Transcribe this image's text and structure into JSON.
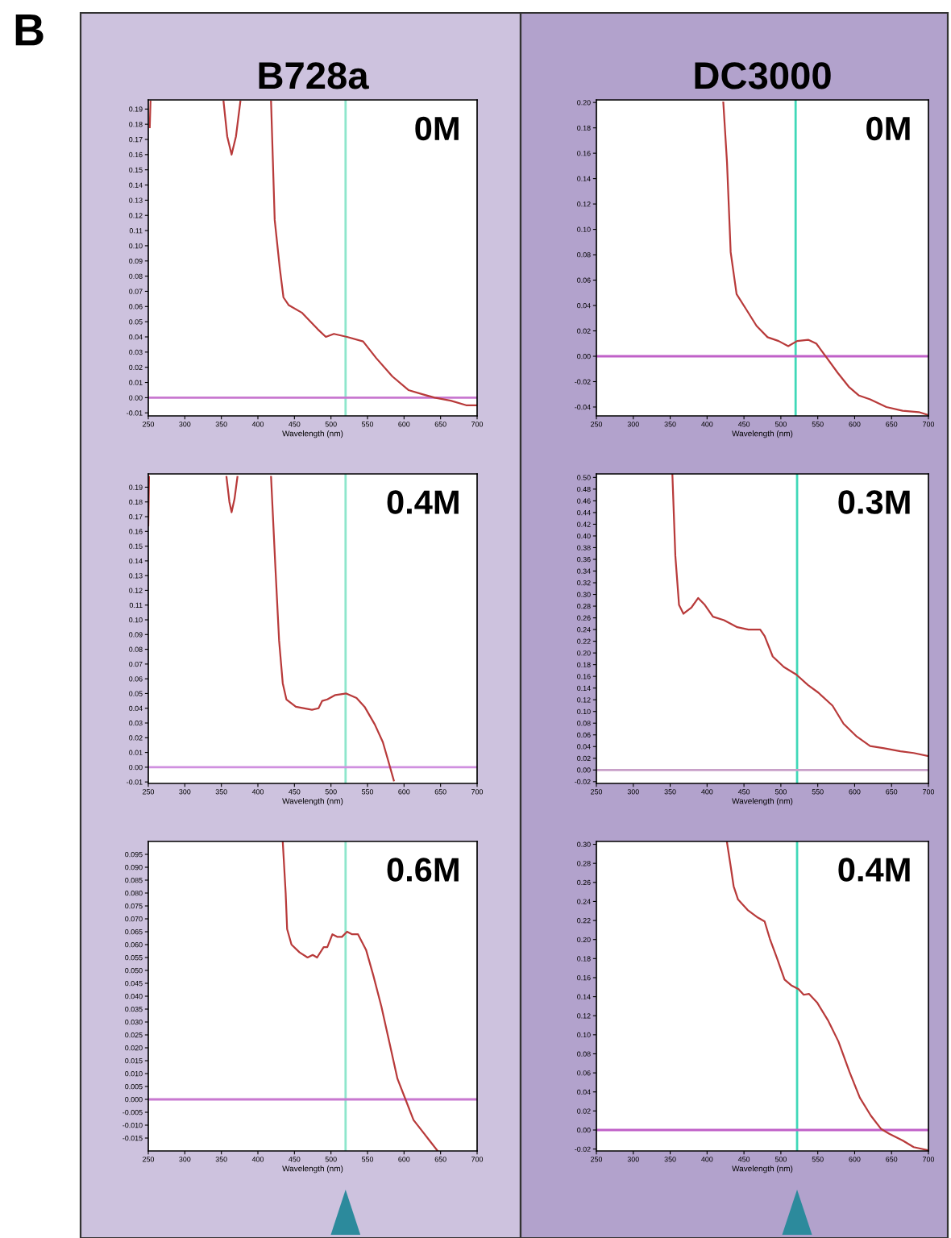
{
  "chart_data": [
    {
      "type": "line",
      "title": "B728a",
      "xlabel": "Wavelength (nm)",
      "annotations": [
        "0M",
        "B"
      ],
      "x": [
        252,
        253,
        null,
        353,
        358,
        364,
        370,
        376,
        null,
        418,
        423,
        430,
        435,
        442,
        460,
        482,
        493,
        504,
        522,
        544,
        562,
        584,
        606,
        627,
        642,
        664,
        685,
        700
      ],
      "series": [
        {
          "color": "#b83a3a",
          "values": [
            0.178,
            0.195,
            null,
            0.195,
            0.172,
            0.16,
            0.172,
            0.195,
            null,
            0.195,
            0.117,
            0.085,
            0.066,
            0.061,
            0.056,
            0.045,
            0.04,
            0.042,
            0.04,
            0.037,
            0.026,
            0.014,
            0.005,
            0.002,
            0.0,
            -0.002,
            -0.005,
            -0.005
          ]
        }
      ],
      "xlim": [
        250,
        700
      ],
      "xticks": [
        250,
        300,
        350,
        400,
        450,
        500,
        550,
        600,
        650,
        700
      ],
      "ylim": [
        -0.012,
        0.196
      ],
      "yticks": [
        {
          "value": -0.01,
          "label": "-0.01"
        },
        {
          "value": 0.0,
          "label": "0.00"
        },
        {
          "value": 0.01,
          "label": "0.01"
        },
        {
          "value": 0.02,
          "label": "0.02"
        },
        {
          "value": 0.03,
          "label": "0.03"
        },
        {
          "value": 0.04,
          "label": "0.04"
        },
        {
          "value": 0.05,
          "label": "0.05"
        },
        {
          "value": 0.06,
          "label": "0.06"
        },
        {
          "value": 0.07,
          "label": "0.07"
        },
        {
          "value": 0.08,
          "label": "0.08"
        },
        {
          "value": 0.09,
          "label": "0.09"
        },
        {
          "value": 0.1,
          "label": "0.10"
        },
        {
          "value": 0.11,
          "label": "0.11"
        },
        {
          "value": 0.12,
          "label": "0.12"
        },
        {
          "value": 0.13,
          "label": "0.13"
        },
        {
          "value": 0.14,
          "label": "0.14"
        },
        {
          "value": 0.15,
          "label": "0.15"
        },
        {
          "value": 0.16,
          "label": "0.16"
        },
        {
          "value": 0.17,
          "label": "0.17"
        },
        {
          "value": 0.18,
          "label": "0.18"
        },
        {
          "value": 0.19,
          "label": "0.19"
        }
      ],
      "ref_lines": [
        {
          "axis": "x",
          "value": 520,
          "color": "#8ee6cc"
        },
        {
          "axis": "y",
          "value": 0,
          "color": "#c878d0"
        }
      ],
      "grid": false,
      "legend": false,
      "marker": "none",
      "line_style": "solid"
    },
    {
      "type": "line",
      "title": "DC3000",
      "xlabel": "Wavelength (nm)",
      "annotations": [
        "0M"
      ],
      "x": [
        422,
        427,
        432,
        440,
        453,
        467,
        482,
        497,
        510,
        522,
        537,
        548,
        562,
        577,
        592,
        606,
        621,
        643,
        665,
        687,
        698
      ],
      "series": [
        {
          "color": "#b83a3a",
          "values": [
            0.2,
            0.153,
            0.082,
            0.049,
            0.037,
            0.024,
            0.015,
            0.012,
            0.008,
            0.012,
            0.013,
            0.01,
            -0.001,
            -0.013,
            -0.024,
            -0.031,
            -0.034,
            -0.04,
            -0.043,
            -0.044,
            -0.046
          ]
        }
      ],
      "xlim": [
        250,
        700
      ],
      "xticks": [
        250,
        300,
        350,
        400,
        450,
        500,
        550,
        600,
        650,
        700
      ],
      "ylim": [
        -0.047,
        0.202
      ],
      "yticks": [
        {
          "value": -0.04,
          "label": "-0.04"
        },
        {
          "value": -0.02,
          "label": "-0.02"
        },
        {
          "value": 0.0,
          "label": "0.00"
        },
        {
          "value": 0.02,
          "label": "0.02"
        },
        {
          "value": 0.04,
          "label": "0.04"
        },
        {
          "value": 0.06,
          "label": "0.06"
        },
        {
          "value": 0.08,
          "label": "0.08"
        },
        {
          "value": 0.1,
          "label": "0.10"
        },
        {
          "value": 0.12,
          "label": "0.12"
        },
        {
          "value": 0.14,
          "label": "0.14"
        },
        {
          "value": 0.16,
          "label": "0.16"
        },
        {
          "value": 0.18,
          "label": "0.18"
        },
        {
          "value": 0.2,
          "label": "0.20"
        }
      ],
      "ref_lines": [
        {
          "axis": "x",
          "value": 520,
          "color": "#40d8b8"
        },
        {
          "axis": "y",
          "value": 0,
          "color": "#c060c8"
        }
      ],
      "grid": false,
      "legend": false,
      "marker": "none",
      "line_style": "solid"
    },
    {
      "type": "line",
      "xlabel": "Wavelength (nm)",
      "annotations": [
        "0.4M"
      ],
      "x": [
        250,
        251,
        null,
        357,
        361,
        364,
        368,
        372,
        null,
        418,
        424,
        429,
        434,
        439,
        452,
        474,
        483,
        488,
        495,
        506,
        521,
        535,
        546,
        560,
        571,
        578,
        586
      ],
      "series": [
        {
          "color": "#b83a3a",
          "values": [
            0.164,
            0.197,
            null,
            0.197,
            0.18,
            0.173,
            0.182,
            0.197,
            null,
            0.197,
            0.135,
            0.086,
            0.057,
            0.046,
            0.041,
            0.039,
            0.04,
            0.045,
            0.046,
            0.049,
            0.05,
            0.047,
            0.041,
            0.029,
            0.017,
            0.005,
            -0.009
          ]
        }
      ],
      "xlim": [
        250,
        700
      ],
      "xticks": [
        250,
        300,
        350,
        400,
        450,
        500,
        550,
        600,
        650,
        700
      ],
      "ylim": [
        -0.011,
        0.199
      ],
      "yticks": [
        {
          "value": -0.01,
          "label": "-0.01"
        },
        {
          "value": 0.0,
          "label": "0.00"
        },
        {
          "value": 0.01,
          "label": "0.01"
        },
        {
          "value": 0.02,
          "label": "0.02"
        },
        {
          "value": 0.03,
          "label": "0.03"
        },
        {
          "value": 0.04,
          "label": "0.04"
        },
        {
          "value": 0.05,
          "label": "0.05"
        },
        {
          "value": 0.06,
          "label": "0.06"
        },
        {
          "value": 0.07,
          "label": "0.07"
        },
        {
          "value": 0.08,
          "label": "0.08"
        },
        {
          "value": 0.09,
          "label": "0.09"
        },
        {
          "value": 0.1,
          "label": "0.10"
        },
        {
          "value": 0.11,
          "label": "0.11"
        },
        {
          "value": 0.12,
          "label": "0.12"
        },
        {
          "value": 0.13,
          "label": "0.13"
        },
        {
          "value": 0.14,
          "label": "0.14"
        },
        {
          "value": 0.15,
          "label": "0.15"
        },
        {
          "value": 0.16,
          "label": "0.16"
        },
        {
          "value": 0.17,
          "label": "0.17"
        },
        {
          "value": 0.18,
          "label": "0.18"
        },
        {
          "value": 0.19,
          "label": "0.19"
        }
      ],
      "ref_lines": [
        {
          "axis": "x",
          "value": 520,
          "color": "#8ee6cc"
        },
        {
          "axis": "y",
          "value": 0,
          "color": "#d090e0"
        }
      ],
      "grid": false,
      "legend": false,
      "marker": "none",
      "line_style": "solid"
    },
    {
      "type": "line",
      "xlabel": "Wavelength (nm)",
      "annotations": [
        "0.3M"
      ],
      "x": [
        353,
        357,
        362,
        368,
        379,
        388,
        397,
        408,
        423,
        441,
        456,
        472,
        478,
        489,
        504,
        521,
        537,
        551,
        570,
        585,
        603,
        621,
        640,
        662,
        680,
        699
      ],
      "series": [
        {
          "color": "#b83a3a",
          "values": [
            0.505,
            0.366,
            0.282,
            0.267,
            0.278,
            0.294,
            0.282,
            0.262,
            0.256,
            0.244,
            0.24,
            0.24,
            0.229,
            0.194,
            0.176,
            0.163,
            0.145,
            0.132,
            0.11,
            0.079,
            0.057,
            0.041,
            0.037,
            0.032,
            0.029,
            0.024
          ]
        }
      ],
      "xlim": [
        250,
        700
      ],
      "xticks": [
        250,
        300,
        350,
        400,
        450,
        500,
        550,
        600,
        650,
        700
      ],
      "ylim": [
        -0.023,
        0.506
      ],
      "yticks": [
        {
          "value": -0.02,
          "label": "-0.02"
        },
        {
          "value": 0.0,
          "label": "0.00"
        },
        {
          "value": 0.02,
          "label": "0.02"
        },
        {
          "value": 0.04,
          "label": "0.04"
        },
        {
          "value": 0.06,
          "label": "0.06"
        },
        {
          "value": 0.08,
          "label": "0.08"
        },
        {
          "value": 0.1,
          "label": "0.10"
        },
        {
          "value": 0.12,
          "label": "0.12"
        },
        {
          "value": 0.14,
          "label": "0.14"
        },
        {
          "value": 0.16,
          "label": "0.16"
        },
        {
          "value": 0.18,
          "label": "0.18"
        },
        {
          "value": 0.2,
          "label": "0.20"
        },
        {
          "value": 0.22,
          "label": "0.22"
        },
        {
          "value": 0.24,
          "label": "0.24"
        },
        {
          "value": 0.26,
          "label": "0.26"
        },
        {
          "value": 0.28,
          "label": "0.28"
        },
        {
          "value": 0.3,
          "label": "0.30"
        },
        {
          "value": 0.32,
          "label": "0.32"
        },
        {
          "value": 0.34,
          "label": "0.34"
        },
        {
          "value": 0.36,
          "label": "0.36"
        },
        {
          "value": 0.38,
          "label": "0.38"
        },
        {
          "value": 0.4,
          "label": "0.40"
        },
        {
          "value": 0.42,
          "label": "0.42"
        },
        {
          "value": 0.44,
          "label": "0.44"
        },
        {
          "value": 0.46,
          "label": "0.46"
        },
        {
          "value": 0.48,
          "label": "0.48"
        },
        {
          "value": 0.5,
          "label": "0.50"
        }
      ],
      "ref_lines": [
        {
          "axis": "x",
          "value": 522,
          "color": "#40d8b8"
        },
        {
          "axis": "y",
          "value": 0,
          "color": "#c8a0c8"
        }
      ],
      "grid": false,
      "legend": false,
      "marker": "none",
      "line_style": "solid"
    },
    {
      "type": "line",
      "xlabel": "Wavelength (nm)",
      "annotations": [
        "0.6M"
      ],
      "x": [
        434,
        438,
        440,
        446,
        457,
        468,
        475,
        481,
        490,
        495,
        502,
        509,
        515,
        522,
        529,
        537,
        548,
        558,
        569,
        580,
        591,
        602,
        613,
        624,
        635,
        646
      ],
      "series": [
        {
          "color": "#b83a3a",
          "values": [
            0.1,
            0.08,
            0.066,
            0.06,
            0.057,
            0.055,
            0.056,
            0.055,
            0.059,
            0.059,
            0.064,
            0.063,
            0.063,
            0.065,
            0.064,
            0.064,
            0.058,
            0.048,
            0.036,
            0.022,
            0.008,
            0.0,
            -0.008,
            -0.012,
            -0.016,
            -0.02
          ]
        }
      ],
      "xlim": [
        250,
        700
      ],
      "xticks": [
        250,
        300,
        350,
        400,
        450,
        500,
        550,
        600,
        650,
        700
      ],
      "ylim": [
        -0.02,
        0.1
      ],
      "yticks": [
        {
          "value": -0.015,
          "label": "-0.015"
        },
        {
          "value": -0.01,
          "label": "-0.010"
        },
        {
          "value": -0.005,
          "label": "-0.005"
        },
        {
          "value": 0.0,
          "label": "0.000"
        },
        {
          "value": 0.005,
          "label": "0.005"
        },
        {
          "value": 0.01,
          "label": "0.010"
        },
        {
          "value": 0.015,
          "label": "0.015"
        },
        {
          "value": 0.02,
          "label": "0.020"
        },
        {
          "value": 0.025,
          "label": "0.025"
        },
        {
          "value": 0.03,
          "label": "0.030"
        },
        {
          "value": 0.035,
          "label": "0.035"
        },
        {
          "value": 0.04,
          "label": "0.040"
        },
        {
          "value": 0.045,
          "label": "0.045"
        },
        {
          "value": 0.05,
          "label": "0.050"
        },
        {
          "value": 0.055,
          "label": "0.055"
        },
        {
          "value": 0.06,
          "label": "0.060"
        },
        {
          "value": 0.065,
          "label": "0.065"
        },
        {
          "value": 0.07,
          "label": "0.070"
        },
        {
          "value": 0.075,
          "label": "0.075"
        },
        {
          "value": 0.08,
          "label": "0.080"
        },
        {
          "value": 0.085,
          "label": "0.085"
        },
        {
          "value": 0.09,
          "label": "0.090"
        },
        {
          "value": 0.095,
          "label": "0.095"
        }
      ],
      "ref_lines": [
        {
          "axis": "x",
          "value": 520,
          "color": "#8ee6cc"
        },
        {
          "axis": "y",
          "value": 0,
          "color": "#c878d0"
        }
      ],
      "grid": false,
      "legend": false,
      "marker": "none",
      "line_style": "solid"
    },
    {
      "type": "line",
      "xlabel": "Wavelength (nm)",
      "annotations": [
        "0.4M"
      ],
      "x": [
        427,
        432,
        436,
        442,
        455,
        469,
        478,
        485,
        495,
        505,
        514,
        524,
        531,
        538,
        549,
        564,
        578,
        593,
        607,
        622,
        636,
        647,
        665,
        680,
        698
      ],
      "series": [
        {
          "color": "#b83a3a",
          "values": [
            0.302,
            0.277,
            0.256,
            0.242,
            0.231,
            0.223,
            0.219,
            0.201,
            0.18,
            0.158,
            0.152,
            0.148,
            0.142,
            0.143,
            0.134,
            0.115,
            0.093,
            0.061,
            0.034,
            0.015,
            0.001,
            -0.004,
            -0.011,
            -0.018,
            -0.021
          ]
        }
      ],
      "xlim": [
        250,
        700
      ],
      "xticks": [
        250,
        300,
        350,
        400,
        450,
        500,
        550,
        600,
        650,
        700
      ],
      "ylim": [
        -0.022,
        0.303
      ],
      "yticks": [
        {
          "value": -0.02,
          "label": "-0.02"
        },
        {
          "value": 0.0,
          "label": "0.00"
        },
        {
          "value": 0.02,
          "label": "0.02"
        },
        {
          "value": 0.04,
          "label": "0.04"
        },
        {
          "value": 0.06,
          "label": "0.06"
        },
        {
          "value": 0.08,
          "label": "0.08"
        },
        {
          "value": 0.1,
          "label": "0.10"
        },
        {
          "value": 0.12,
          "label": "0.12"
        },
        {
          "value": 0.14,
          "label": "0.14"
        },
        {
          "value": 0.16,
          "label": "0.16"
        },
        {
          "value": 0.18,
          "label": "0.18"
        },
        {
          "value": 0.2,
          "label": "0.20"
        },
        {
          "value": 0.22,
          "label": "0.22"
        },
        {
          "value": 0.24,
          "label": "0.24"
        },
        {
          "value": 0.26,
          "label": "0.26"
        },
        {
          "value": 0.28,
          "label": "0.28"
        },
        {
          "value": 0.3,
          "label": "0.30"
        }
      ],
      "ref_lines": [
        {
          "axis": "x",
          "value": 522,
          "color": "#40d8b8"
        },
        {
          "axis": "y",
          "value": 0,
          "color": "#c060c8"
        }
      ],
      "grid": false,
      "legend": false,
      "marker": "none",
      "line_style": "solid"
    }
  ]
}
